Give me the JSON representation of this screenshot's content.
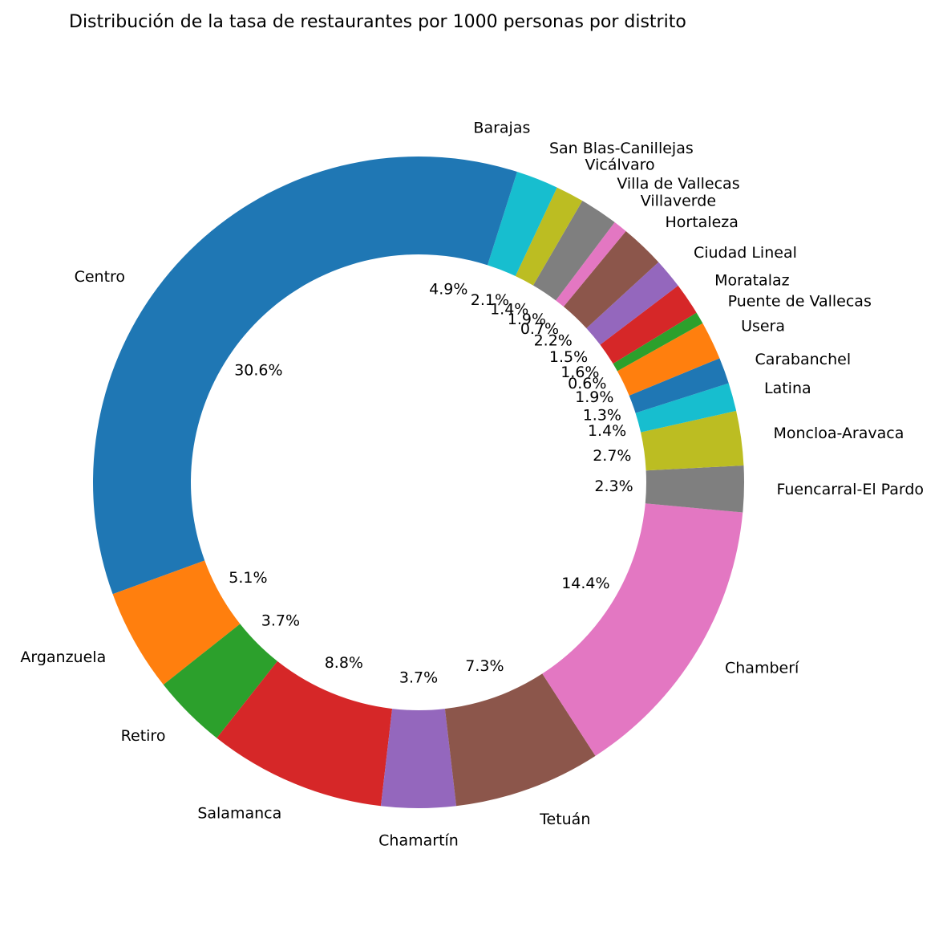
{
  "chart_data": {
    "type": "pie",
    "variant": "donut",
    "title": "Distribución de la tasa de restaurantes por 1000 personas por distrito",
    "start_angle_deg": 90,
    "direction": "counterclockwise",
    "slices": [
      {
        "label": "Centro",
        "value": 30.6,
        "pct_label": "30.6%",
        "color": "#1f77b4"
      },
      {
        "label": "Arganzuela",
        "value": 5.1,
        "pct_label": "5.1%",
        "color": "#ff7f0e"
      },
      {
        "label": "Retiro",
        "value": 3.7,
        "pct_label": "3.7%",
        "color": "#2ca02c"
      },
      {
        "label": "Salamanca",
        "value": 8.8,
        "pct_label": "8.8%",
        "color": "#d62728"
      },
      {
        "label": "Chamartín",
        "value": 3.7,
        "pct_label": "3.7%",
        "color": "#9467bd"
      },
      {
        "label": "Tetuán",
        "value": 7.3,
        "pct_label": "7.3%",
        "color": "#8c564b"
      },
      {
        "label": "Chamberí",
        "value": 14.4,
        "pct_label": "14.4%",
        "color": "#e377c2"
      },
      {
        "label": "Fuencarral-El Pardo",
        "value": 2.3,
        "pct_label": "2.3%",
        "color": "#7f7f7f"
      },
      {
        "label": "Moncloa-Aravaca",
        "value": 2.7,
        "pct_label": "2.7%",
        "color": "#bcbd22"
      },
      {
        "label": "Latina",
        "value": 1.4,
        "pct_label": "1.4%",
        "color": "#17becf"
      },
      {
        "label": "Carabanchel",
        "value": 1.3,
        "pct_label": "1.3%",
        "color": "#1f77b4"
      },
      {
        "label": "Usera",
        "value": 1.9,
        "pct_label": "1.9%",
        "color": "#ff7f0e"
      },
      {
        "label": "Puente de Vallecas",
        "value": 0.6,
        "pct_label": "0.6%",
        "color": "#2ca02c"
      },
      {
        "label": "Moratalaz",
        "value": 1.6,
        "pct_label": "1.6%",
        "color": "#d62728"
      },
      {
        "label": "Ciudad Lineal",
        "value": 1.5,
        "pct_label": "1.5%",
        "color": "#9467bd"
      },
      {
        "label": "Hortaleza",
        "value": 2.2,
        "pct_label": "2.2%",
        "color": "#8c564b"
      },
      {
        "label": "Villaverde",
        "value": 0.7,
        "pct_label": "0.7%",
        "color": "#e377c2"
      },
      {
        "label": "Villa de Vallecas",
        "value": 1.9,
        "pct_label": "1.9%",
        "color": "#7f7f7f"
      },
      {
        "label": "Vicálvaro",
        "value": 1.4,
        "pct_label": "1.4%",
        "color": "#bcbd22"
      },
      {
        "label": "San Blas-Canillejas",
        "value": 2.1,
        "pct_label": "2.1%",
        "color": "#17becf"
      },
      {
        "label": "Barajas",
        "value": 4.9,
        "pct_label": "4.9%",
        "color": "#1f77b4"
      }
    ]
  }
}
